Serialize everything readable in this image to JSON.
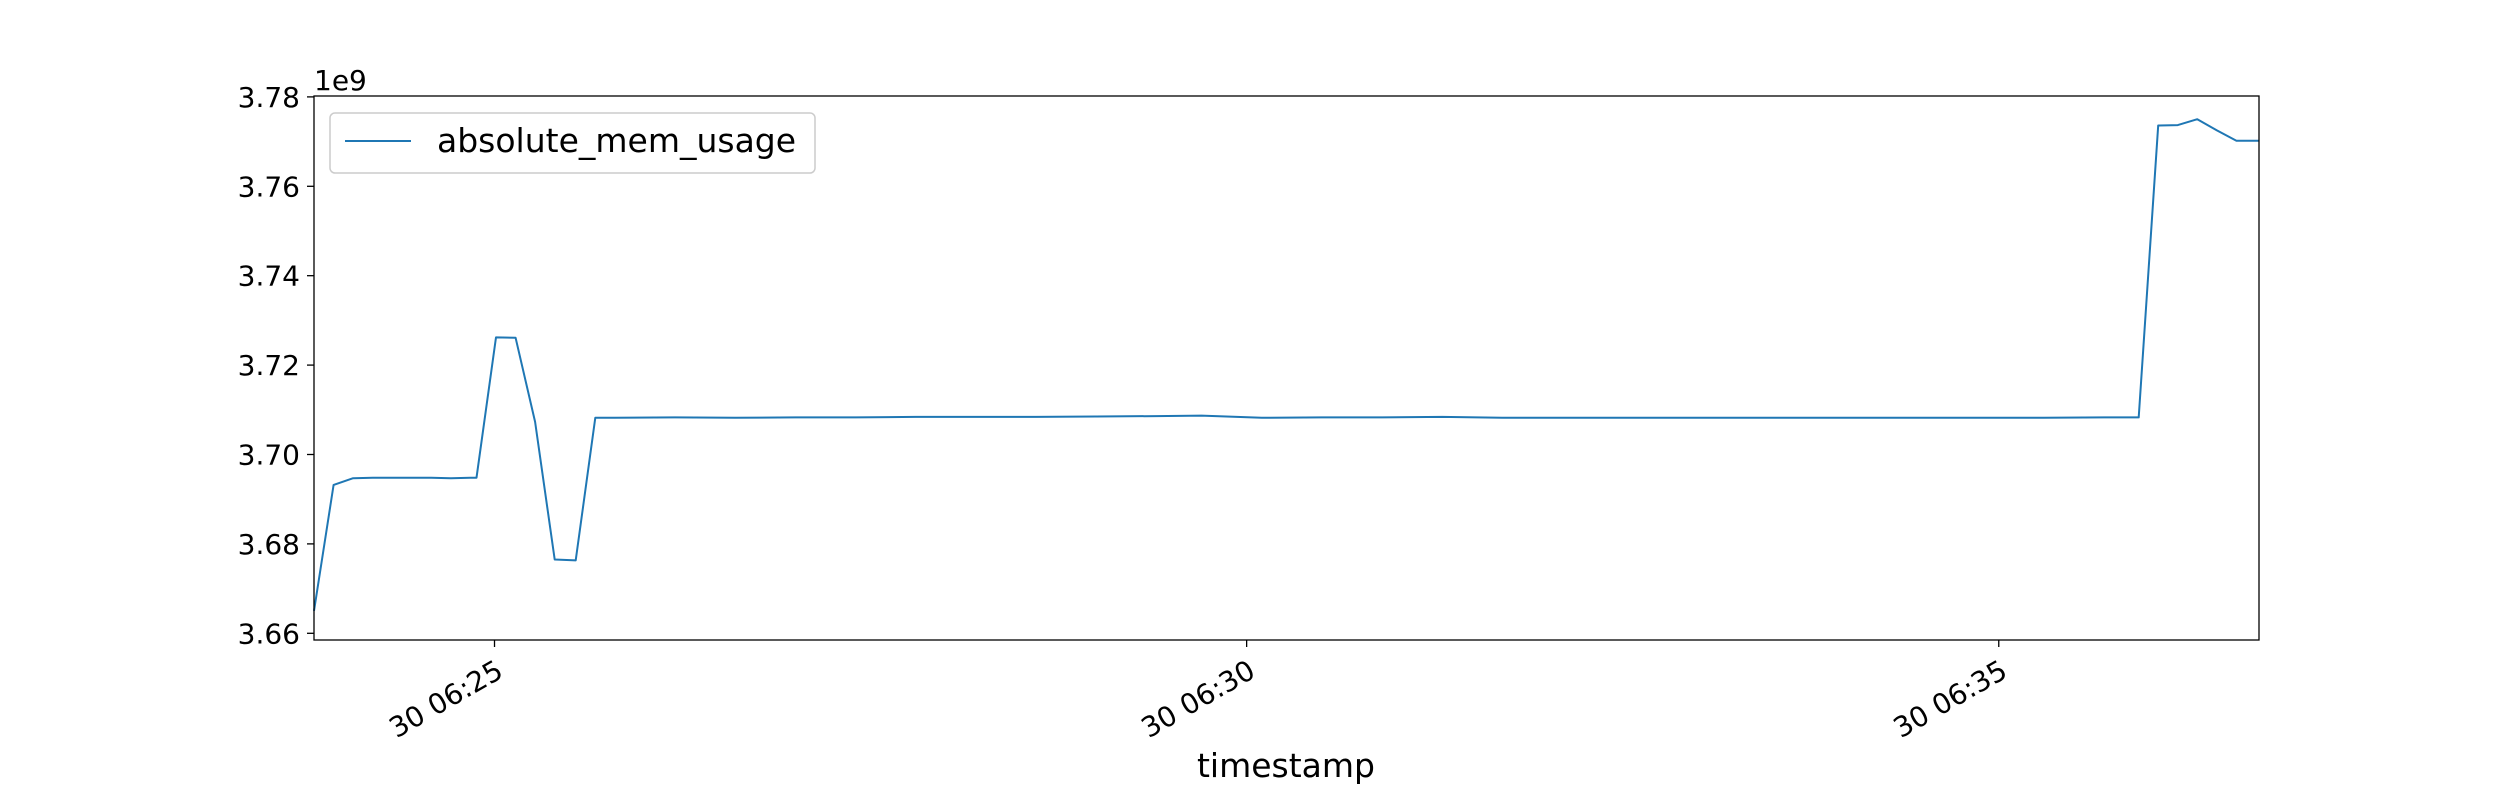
{
  "chart_data": {
    "type": "line",
    "xlabel": "timestamp",
    "ylabel": "",
    "y_offset_label": "1e9",
    "x_ticks": [
      "30 06:25",
      "30 06:30",
      "30 06:35"
    ],
    "y_ticks": [
      "3.66",
      "3.68",
      "3.70",
      "3.72",
      "3.74",
      "3.76",
      "3.78"
    ],
    "x_unit": "minutes",
    "xlim": [
      23.8,
      36.73
    ],
    "ylim": [
      3.6585,
      3.7802
    ],
    "legend_position": "upper-left",
    "grid": false,
    "series": [
      {
        "name": "absolute_mem_usage",
        "color": "#1f77b4",
        "x": [
          23.8,
          23.93,
          24.06,
          24.19,
          24.32,
          24.45,
          24.58,
          24.71,
          24.84,
          24.88,
          25.01,
          25.14,
          25.27,
          25.4,
          25.54,
          25.67,
          25.8,
          26.2,
          26.6,
          27.0,
          27.4,
          27.8,
          28.2,
          28.6,
          29.0,
          29.4,
          29.7,
          30.1,
          30.5,
          30.9,
          31.3,
          31.7,
          32.1,
          32.5,
          32.9,
          33.3,
          33.7,
          34.1,
          34.5,
          34.9,
          35.3,
          35.7,
          35.93,
          36.06,
          36.19,
          36.32,
          36.45,
          36.58,
          36.73
        ],
        "y": [
          3.665,
          3.6932,
          3.6947,
          3.6948,
          3.6948,
          3.6948,
          3.6948,
          3.6947,
          3.6948,
          3.6948,
          3.7262,
          3.7261,
          3.7073,
          3.6765,
          3.6763,
          3.7082,
          3.7082,
          3.7083,
          3.7082,
          3.7083,
          3.7083,
          3.7084,
          3.7084,
          3.7084,
          3.7085,
          3.7086,
          3.7087,
          3.7082,
          3.7083,
          3.7083,
          3.7084,
          3.7082,
          3.7082,
          3.7082,
          3.7082,
          3.7082,
          3.7082,
          3.7082,
          3.7082,
          3.7082,
          3.7082,
          3.7083,
          3.7083,
          3.7736,
          3.7737,
          3.775,
          3.7725,
          3.7702,
          3.7702
        ]
      }
    ]
  }
}
